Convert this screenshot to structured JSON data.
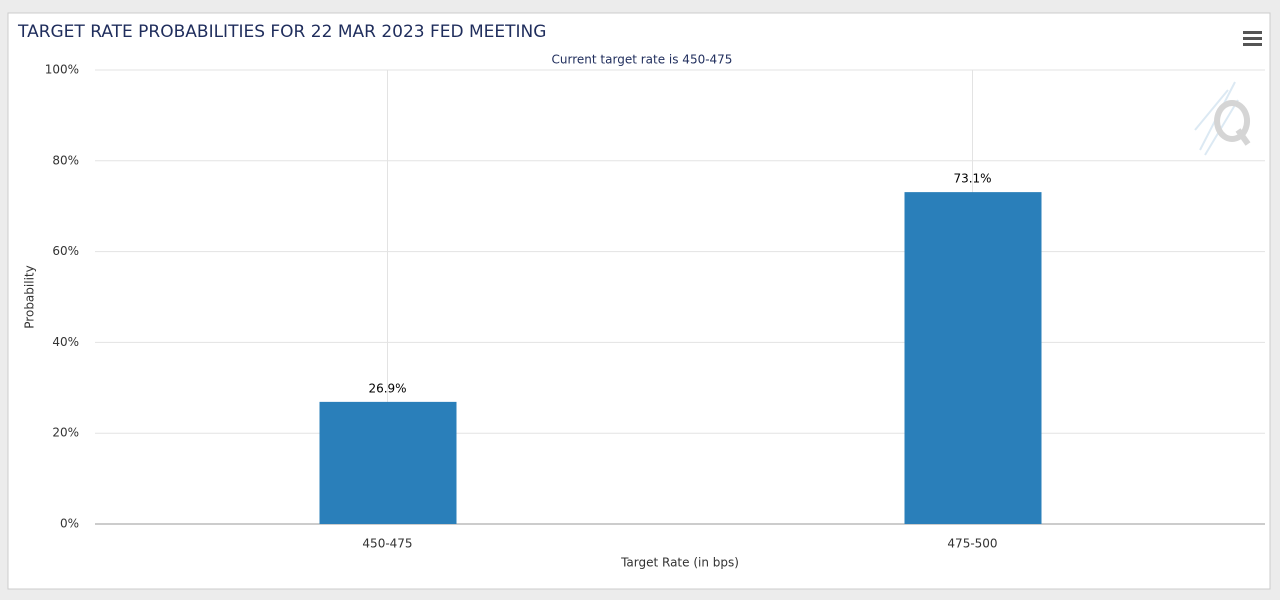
{
  "chart_data": {
    "type": "bar",
    "title": "TARGET RATE PROBABILITIES FOR 22 MAR 2023 FED MEETING",
    "subtitle": "Current target rate is 450-475",
    "x_label": "Target Rate (in bps)",
    "y_label": "Probability",
    "categories": [
      "450-475",
      "475-500"
    ],
    "values": [
      26.9,
      73.1
    ],
    "value_labels": [
      "26.9%",
      "73.1%"
    ],
    "color": "#2a7fba",
    "ylim": [
      0,
      100
    ],
    "yticks": [
      {
        "value": 0,
        "label": "0%"
      },
      {
        "value": 20,
        "label": "20%"
      },
      {
        "value": 40,
        "label": "40%"
      },
      {
        "value": 60,
        "label": "60%"
      },
      {
        "value": 80,
        "label": "80%"
      },
      {
        "value": 100,
        "label": "100%"
      }
    ],
    "grid": true
  }
}
